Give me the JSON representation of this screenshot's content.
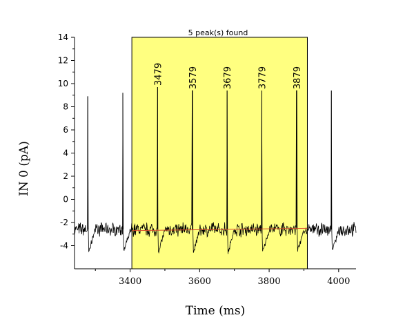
{
  "chart_data": {
    "type": "line",
    "title": "5 peak(s) found",
    "xlabel": "Time (ms)",
    "ylabel": "IN 0 (pA)",
    "xlim": [
      3240,
      4050
    ],
    "ylim": [
      -6,
      14
    ],
    "x_ticks": [
      3400,
      3600,
      3800,
      4000
    ],
    "y_ticks": [
      -4,
      -2,
      0,
      2,
      4,
      6,
      8,
      10,
      12,
      14
    ],
    "grid": false,
    "highlight_region": {
      "x_start": 3405,
      "x_end": 3910,
      "color": "#ffff80"
    },
    "baseline": {
      "x": [
        3405,
        3910
      ],
      "y": [
        -2.7,
        -2.5
      ],
      "color": "#d94b2b"
    },
    "peaks": [
      {
        "x": 3479,
        "y": 9.7,
        "label": "3479"
      },
      {
        "x": 3579,
        "y": 9.4,
        "label": "3579"
      },
      {
        "x": 3679,
        "y": 9.4,
        "label": "3679"
      },
      {
        "x": 3779,
        "y": 9.4,
        "label": "3779"
      },
      {
        "x": 3879,
        "y": 9.4,
        "label": "3879"
      }
    ],
    "spikes": [
      {
        "x": 3278,
        "y": 8.9
      },
      {
        "x": 3379,
        "y": 9.2
      },
      {
        "x": 3479,
        "y": 9.7
      },
      {
        "x": 3579,
        "y": 9.4
      },
      {
        "x": 3679,
        "y": 9.4
      },
      {
        "x": 3779,
        "y": 9.4
      },
      {
        "x": 3879,
        "y": 9.4
      },
      {
        "x": 3979,
        "y": 9.4
      }
    ],
    "signal_baseline": -2.6,
    "trough": -4.6,
    "series_color": "#000000"
  }
}
